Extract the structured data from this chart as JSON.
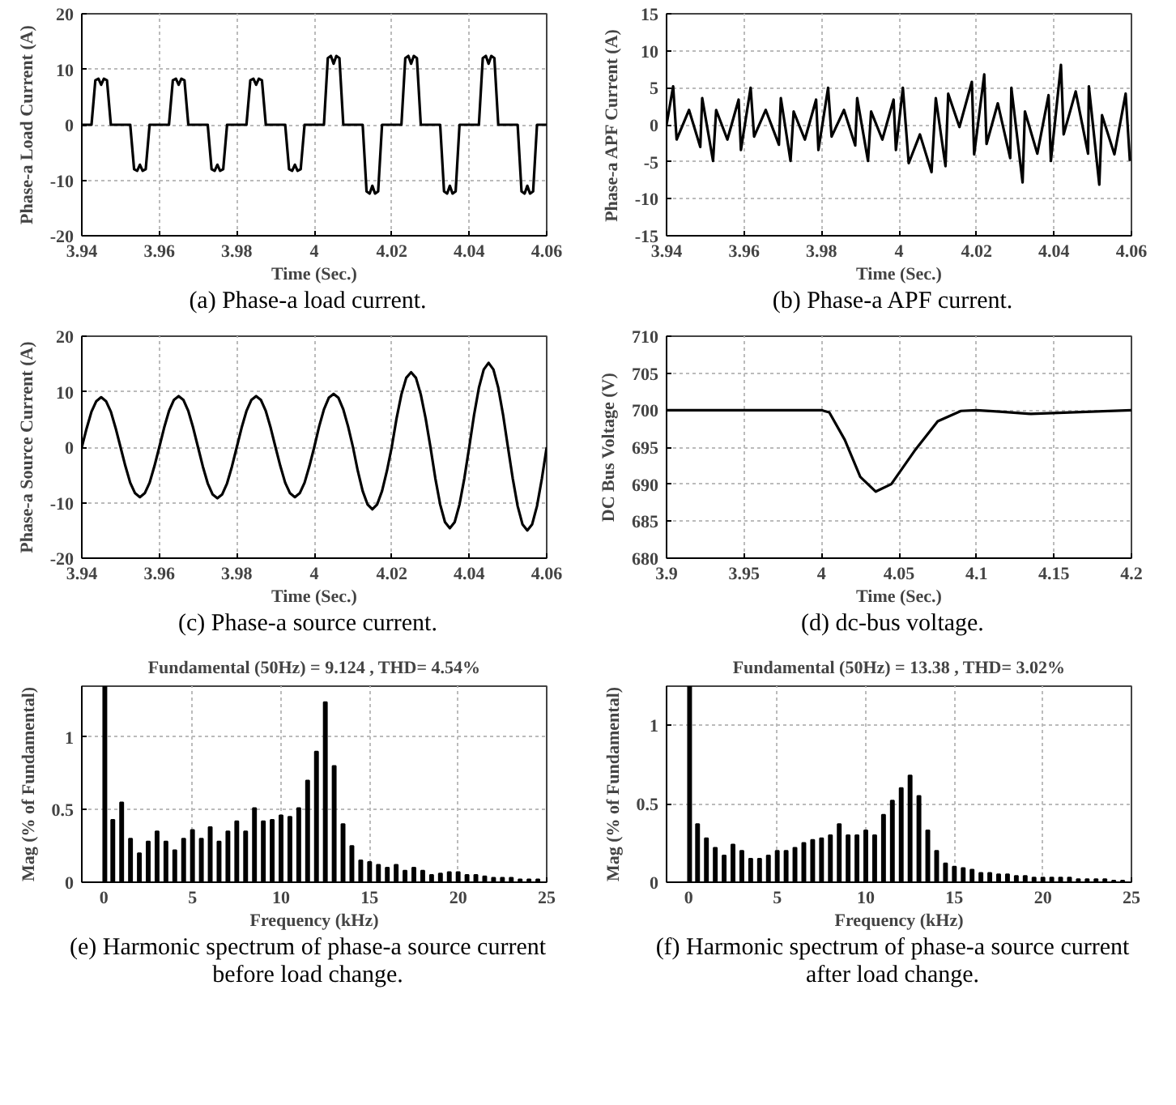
{
  "chart_data": [
    {
      "type": "line",
      "ylabel": "Phase-a Load Current (A)",
      "xlabel": "Time (Sec.)",
      "annotations": [
        "(a) Phase-a load current."
      ],
      "xlim": [
        3.94,
        4.06
      ],
      "ylim": [
        -20,
        20
      ],
      "xticks": [
        3.94,
        3.96,
        3.98,
        4,
        4.02,
        4.04,
        4.06
      ],
      "yticks": [
        -20,
        -10,
        0,
        10,
        20
      ],
      "grid": true,
      "line_style": "solid",
      "series": [
        {
          "color": "#000000",
          "x": [
            3.94,
            3.9425,
            3.9435,
            3.9443,
            3.945,
            3.9457,
            3.9465,
            3.9475,
            3.95,
            3.9525,
            3.9535,
            3.9543,
            3.955,
            3.9557,
            3.9565,
            3.9575,
            3.96,
            3.9625,
            3.9635,
            3.9643,
            3.965,
            3.9657,
            3.9665,
            3.9675,
            3.97,
            3.9725,
            3.9735,
            3.9743,
            3.975,
            3.9757,
            3.9765,
            3.9775,
            3.98,
            3.9825,
            3.9835,
            3.9843,
            3.985,
            3.9857,
            3.9865,
            3.9875,
            3.99,
            3.9925,
            3.9935,
            3.9943,
            3.995,
            3.9957,
            3.9965,
            3.9975,
            4.0,
            4.0025,
            4.0035,
            4.0043,
            4.005,
            4.0057,
            4.0065,
            4.0075,
            4.01,
            4.0125,
            4.0135,
            4.0143,
            4.015,
            4.0157,
            4.0165,
            4.0175,
            4.02,
            4.0225,
            4.0235,
            4.0243,
            4.025,
            4.0257,
            4.0265,
            4.0275,
            4.03,
            4.0325,
            4.0335,
            4.0343,
            4.035,
            4.0357,
            4.0365,
            4.0375,
            4.04,
            4.0425,
            4.0435,
            4.0443,
            4.045,
            4.0457,
            4.0465,
            4.0475,
            4.05,
            4.0525,
            4.0535,
            4.0543,
            4.055,
            4.0557,
            4.0565,
            4.0575,
            4.06
          ],
          "values": [
            0,
            0,
            8,
            8.3,
            7.2,
            8.3,
            8,
            0,
            0,
            0,
            -8,
            -8.3,
            -7.2,
            -8.3,
            -8,
            0,
            0,
            0,
            8,
            8.3,
            7.2,
            8.3,
            8,
            0,
            0,
            0,
            -8,
            -8.3,
            -7.2,
            -8.3,
            -8,
            0,
            0,
            0,
            8,
            8.3,
            7.2,
            8.3,
            8,
            0,
            0,
            0,
            -8,
            -8.3,
            -7.2,
            -8.3,
            -8,
            0,
            0,
            0,
            12,
            12.4,
            11,
            12.4,
            12,
            0,
            0,
            0,
            -12,
            -12.4,
            -11,
            -12.4,
            -12,
            0,
            0,
            0,
            12,
            12.4,
            11,
            12.4,
            12,
            0,
            0,
            0,
            -12,
            -12.4,
            -11,
            -12.4,
            -12,
            0,
            0,
            0,
            12,
            12.4,
            11,
            12.4,
            12,
            0,
            0,
            0,
            -12,
            -12.4,
            -11,
            -12.4,
            -12,
            0,
            0
          ]
        }
      ]
    },
    {
      "type": "line",
      "ylabel": "Phase-a APF Current (A)",
      "xlabel": "Time (Sec.)",
      "annotations": [
        "(b) Phase-a APF current."
      ],
      "xlim": [
        3.94,
        4.06
      ],
      "ylim": [
        -15,
        15
      ],
      "xticks": [
        3.94,
        3.96,
        3.98,
        4,
        4.02,
        4.04,
        4.06
      ],
      "yticks": [
        -15,
        -10,
        -5,
        0,
        5,
        10,
        15
      ],
      "grid": true,
      "line_style": "solid",
      "series": [
        {
          "color": "#000000",
          "x": [
            3.94,
            3.9417,
            3.9426,
            3.9458,
            3.9487,
            3.9492,
            3.952,
            3.9528,
            3.9557,
            3.9586,
            3.9592,
            3.9617,
            3.9626,
            3.9656,
            3.969,
            3.9695,
            3.972,
            3.9728,
            3.9757,
            3.9786,
            3.9792,
            3.9817,
            3.9826,
            3.9858,
            3.9887,
            3.9892,
            3.992,
            3.9928,
            3.9957,
            3.9986,
            3.9992,
            4.001,
            4.0025,
            4.0054,
            4.0084,
            4.0095,
            4.012,
            4.0127,
            4.0156,
            4.0188,
            4.0194,
            4.022,
            4.0226,
            4.0255,
            4.0287,
            4.029,
            4.0319,
            4.0325,
            4.0357,
            4.0386,
            4.0392,
            4.0418,
            4.0425,
            4.0456,
            4.0488,
            4.049,
            4.0517,
            4.0524,
            4.0556,
            4.0585,
            4.0596
          ],
          "values": [
            0,
            5.2,
            -2,
            2,
            -3,
            3.6,
            -4.9,
            2,
            -2,
            3.4,
            -3.4,
            5,
            -1.6,
            2,
            -2.7,
            3.6,
            -4.9,
            1.8,
            -2,
            3.4,
            -3.4,
            5,
            -1.6,
            2,
            -2.8,
            3.6,
            -4.9,
            1.8,
            -2,
            3.4,
            -3.4,
            5,
            -5.2,
            -1.3,
            -6.4,
            3.6,
            -5.6,
            4.2,
            -0.3,
            5.8,
            -4,
            6.8,
            -2.6,
            2.9,
            -4.5,
            5,
            -7.8,
            1.8,
            -3.9,
            4,
            -4.9,
            8.1,
            -1.3,
            4.5,
            -3.9,
            5.2,
            -8.1,
            1.3,
            -4,
            4.2,
            -4.9
          ]
        }
      ]
    },
    {
      "type": "line",
      "ylabel": "Phase-a Source Current (A)",
      "xlabel": "Time (Sec.)",
      "annotations": [
        "(c) Phase-a source current."
      ],
      "xlim": [
        3.94,
        4.06
      ],
      "ylim": [
        -20,
        20
      ],
      "xticks": [
        3.94,
        3.96,
        3.98,
        4,
        4.02,
        4.04,
        4.06
      ],
      "yticks": [
        -20,
        -10,
        0,
        10,
        20
      ],
      "grid": true,
      "line_style": "solid",
      "series": [
        {
          "color": "#000000",
          "x": [
            3.94,
            3.94125,
            3.9425,
            3.94375,
            3.945,
            3.94625,
            3.9475,
            3.94875,
            3.95,
            3.95125,
            3.9525,
            3.95375,
            3.955,
            3.95625,
            3.9575,
            3.95875,
            3.96,
            3.96125,
            3.9625,
            3.96375,
            3.965,
            3.96625,
            3.9675,
            3.96875,
            3.97,
            3.97125,
            3.9725,
            3.97375,
            3.975,
            3.97625,
            3.9775,
            3.97875,
            3.98,
            3.98125,
            3.9825,
            3.98375,
            3.985,
            3.98625,
            3.9875,
            3.98875,
            3.99,
            3.99125,
            3.9925,
            3.99375,
            3.995,
            3.99625,
            3.9975,
            3.99875,
            4.0,
            4.00125,
            4.0025,
            4.00375,
            4.005,
            4.00625,
            4.0075,
            4.00875,
            4.01,
            4.01125,
            4.0125,
            4.01375,
            4.015,
            4.01625,
            4.0175,
            4.01875,
            4.02,
            4.02125,
            4.0225,
            4.02375,
            4.025,
            4.02625,
            4.0275,
            4.02875,
            4.03,
            4.03125,
            4.0325,
            4.03375,
            4.035,
            4.03625,
            4.0375,
            4.03875,
            4.04,
            4.04125,
            4.0425,
            4.04375,
            4.045,
            4.04625,
            4.0475,
            4.04875,
            4.05,
            4.05125,
            4.0525,
            4.05375,
            4.055,
            4.05625,
            4.0575,
            4.05875,
            4.06
          ],
          "values": [
            0,
            3.4,
            6.4,
            8.3,
            9,
            8.3,
            6.4,
            3.4,
            0,
            -3.4,
            -6.4,
            -8.3,
            -9,
            -8.3,
            -6.4,
            -3.4,
            0,
            3.5,
            6.5,
            8.5,
            9.2,
            8.5,
            6.5,
            3.5,
            0,
            -3.5,
            -6.5,
            -8.5,
            -9.2,
            -8.5,
            -6.5,
            -3.5,
            0,
            3.5,
            6.5,
            8.5,
            9.2,
            8.5,
            6.5,
            3.5,
            0,
            -3.4,
            -6.4,
            -8.3,
            -9,
            -8.3,
            -6.4,
            -3.4,
            0,
            3.7,
            6.8,
            8.9,
            9.6,
            8.9,
            6.8,
            3.7,
            0,
            -4.3,
            -7.9,
            -10.3,
            -11.2,
            -10.3,
            -7.9,
            -4.3,
            0,
            5.2,
            9.5,
            12.5,
            13.5,
            12.5,
            9.5,
            5.2,
            0,
            -5.6,
            -10.3,
            -13.5,
            -14.6,
            -13.5,
            -10.3,
            -5.6,
            0,
            5.8,
            10.7,
            14,
            15.2,
            14,
            10.7,
            5.8,
            0,
            -5.7,
            -10.6,
            -13.9,
            -15,
            -13.9,
            -10.6,
            -5.7,
            0
          ]
        }
      ]
    },
    {
      "type": "line",
      "ylabel": "DC Bus Voltage (V)",
      "xlabel": "Time (Sec.)",
      "annotations": [
        "(d) dc-bus voltage."
      ],
      "xlim": [
        3.9,
        4.2
      ],
      "ylim": [
        680,
        710
      ],
      "xticks": [
        3.9,
        3.95,
        4,
        4.05,
        4.1,
        4.15,
        4.2
      ],
      "yticks": [
        680,
        685,
        690,
        695,
        700,
        705,
        710
      ],
      "grid": true,
      "line_style": "solid",
      "series": [
        {
          "color": "#000000",
          "x": [
            3.9,
            4.0,
            4.005,
            4.015,
            4.025,
            4.035,
            4.045,
            4.06,
            4.075,
            4.09,
            4.1,
            4.115,
            4.135,
            4.16,
            4.2
          ],
          "values": [
            700,
            700,
            699.7,
            696,
            691,
            689,
            690,
            694.5,
            698.5,
            699.9,
            700,
            699.8,
            699.5,
            699.7,
            700
          ]
        }
      ]
    },
    {
      "type": "bar",
      "title": "Fundamental (50Hz) = 9.124 , THD= 4.54%",
      "ylabel": "Mag (% of Fundamental)",
      "xlabel": "Frequency (kHz)",
      "annotations": [
        "(e) Harmonic spectrum of phase-a source current before load change."
      ],
      "xlim": [
        -1.25,
        25
      ],
      "ylim": [
        0,
        1.35
      ],
      "xticks": [
        0,
        5,
        10,
        15,
        20,
        25
      ],
      "yticks": [
        0,
        0.5,
        1
      ],
      "grid": true,
      "series": [
        {
          "color": "#000000",
          "x": [
            0.05,
            0.5,
            1,
            1.5,
            2,
            2.5,
            3,
            3.5,
            4,
            4.5,
            5,
            5.5,
            6,
            6.5,
            7,
            7.5,
            8,
            8.5,
            9,
            9.5,
            10,
            10.5,
            11,
            11.5,
            12,
            12.5,
            13,
            13.5,
            14,
            14.5,
            15,
            15.5,
            16,
            16.5,
            17,
            17.5,
            18,
            18.5,
            19,
            19.5,
            20,
            20.5,
            21,
            21.5,
            22,
            22.5,
            23,
            23.5,
            24,
            24.5
          ],
          "values": [
            1.35,
            0.43,
            0.55,
            0.3,
            0.2,
            0.28,
            0.35,
            0.28,
            0.22,
            0.3,
            0.36,
            0.3,
            0.38,
            0.28,
            0.35,
            0.42,
            0.35,
            0.51,
            0.42,
            0.43,
            0.46,
            0.45,
            0.51,
            0.7,
            0.9,
            1.24,
            0.8,
            0.4,
            0.25,
            0.15,
            0.14,
            0.12,
            0.1,
            0.12,
            0.08,
            0.1,
            0.08,
            0.05,
            0.06,
            0.07,
            0.07,
            0.05,
            0.05,
            0.04,
            0.03,
            0.03,
            0.03,
            0.02,
            0.02,
            0.02
          ]
        }
      ]
    },
    {
      "type": "bar",
      "title": "Fundamental (50Hz) = 13.38 , THD= 3.02%",
      "ylabel": "Mag (% of Fundamental)",
      "xlabel": "Frequency (kHz)",
      "annotations": [
        "(f) Harmonic spectrum of phase-a source current after load change."
      ],
      "xlim": [
        -1.25,
        25
      ],
      "ylim": [
        0,
        1.25
      ],
      "xticks": [
        0,
        5,
        10,
        15,
        20,
        25
      ],
      "yticks": [
        0,
        0.5,
        1
      ],
      "grid": true,
      "series": [
        {
          "color": "#000000",
          "x": [
            0.05,
            0.5,
            1,
            1.5,
            2,
            2.5,
            3,
            3.5,
            4,
            4.5,
            5,
            5.5,
            6,
            6.5,
            7,
            7.5,
            8,
            8.5,
            9,
            9.5,
            10,
            10.5,
            11,
            11.5,
            12,
            12.5,
            13,
            13.5,
            14,
            14.5,
            15,
            15.5,
            16,
            16.5,
            17,
            17.5,
            18,
            18.5,
            19,
            19.5,
            20,
            20.5,
            21,
            21.5,
            22,
            22.5,
            23,
            23.5,
            24,
            24.5
          ],
          "values": [
            1.25,
            0.37,
            0.28,
            0.22,
            0.17,
            0.24,
            0.2,
            0.15,
            0.15,
            0.17,
            0.2,
            0.2,
            0.22,
            0.25,
            0.27,
            0.28,
            0.3,
            0.37,
            0.3,
            0.3,
            0.33,
            0.3,
            0.43,
            0.52,
            0.6,
            0.68,
            0.55,
            0.33,
            0.2,
            0.12,
            0.1,
            0.09,
            0.08,
            0.06,
            0.06,
            0.05,
            0.05,
            0.04,
            0.04,
            0.03,
            0.03,
            0.03,
            0.03,
            0.03,
            0.02,
            0.02,
            0.02,
            0.02,
            0.01,
            0.01
          ]
        }
      ]
    }
  ]
}
